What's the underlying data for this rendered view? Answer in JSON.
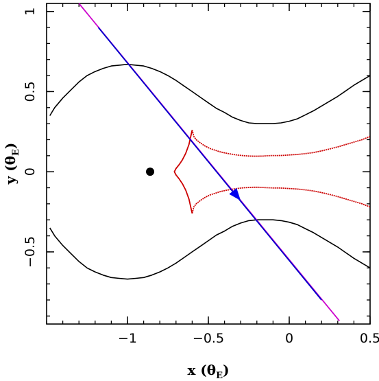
{
  "chart_data": {
    "type": "line",
    "xlim": [
      -1.5,
      0.5
    ],
    "ylim": [
      -0.95,
      1.05
    ],
    "x_ticks": [
      -1,
      -0.5,
      0,
      0.5
    ],
    "x_tick_labels": [
      "−1",
      "−0.5",
      "0",
      "0.5"
    ],
    "y_ticks": [
      -0.5,
      0,
      0.5,
      1
    ],
    "y_tick_labels": [
      "−0.5",
      "0",
      "0.5",
      "1"
    ],
    "x_minor_step": 0.1,
    "y_minor_step": 0.1,
    "xlabel": {
      "main": "x (θ",
      "sub": "E",
      "close": ")"
    },
    "ylabel": {
      "main": "y (θ",
      "sub": "E",
      "close": ")"
    },
    "grid": false,
    "colors": {
      "critical_curve": "#000000",
      "caustic": "#cc0000",
      "trajectory_main": "#0000cc",
      "trajectory_ends": "#cc00cc",
      "arrow": "#0000ee",
      "lens": "#000000"
    },
    "critical_curve_upper": {
      "x": [
        -1.48,
        -1.45,
        -1.4,
        -1.35,
        -1.3,
        -1.25,
        -1.2,
        -1.15,
        -1.1,
        -1.05,
        -1.0,
        -0.95,
        -0.9,
        -0.85,
        -0.8,
        -0.75,
        -0.7,
        -0.65,
        -0.6,
        -0.55,
        -0.5,
        -0.45,
        -0.4,
        -0.35,
        -0.3,
        -0.25,
        -0.2,
        -0.15,
        -0.1,
        -0.05,
        0.0,
        0.05,
        0.1,
        0.15,
        0.2,
        0.25,
        0.3,
        0.35,
        0.4,
        0.45,
        0.5
      ],
      "y": [
        0.35,
        0.4,
        0.46,
        0.51,
        0.56,
        0.6,
        0.625,
        0.645,
        0.66,
        0.665,
        0.67,
        0.665,
        0.66,
        0.645,
        0.625,
        0.6,
        0.57,
        0.535,
        0.5,
        0.465,
        0.43,
        0.395,
        0.37,
        0.34,
        0.32,
        0.305,
        0.3,
        0.3,
        0.3,
        0.305,
        0.315,
        0.33,
        0.355,
        0.38,
        0.41,
        0.44,
        0.47,
        0.505,
        0.54,
        0.57,
        0.6
      ]
    },
    "critical_curve_lower": {
      "x": [
        -1.48,
        -1.45,
        -1.4,
        -1.35,
        -1.3,
        -1.25,
        -1.2,
        -1.15,
        -1.1,
        -1.05,
        -1.0,
        -0.95,
        -0.9,
        -0.85,
        -0.8,
        -0.75,
        -0.7,
        -0.65,
        -0.6,
        -0.55,
        -0.5,
        -0.45,
        -0.4,
        -0.35,
        -0.3,
        -0.25,
        -0.2,
        -0.15,
        -0.1,
        -0.05,
        0.0,
        0.05,
        0.1,
        0.15,
        0.2,
        0.25,
        0.3,
        0.35,
        0.4,
        0.45,
        0.5
      ],
      "y": [
        -0.35,
        -0.4,
        -0.46,
        -0.51,
        -0.56,
        -0.6,
        -0.625,
        -0.645,
        -0.66,
        -0.665,
        -0.67,
        -0.665,
        -0.66,
        -0.645,
        -0.625,
        -0.6,
        -0.57,
        -0.535,
        -0.5,
        -0.465,
        -0.43,
        -0.395,
        -0.37,
        -0.34,
        -0.32,
        -0.305,
        -0.3,
        -0.3,
        -0.3,
        -0.305,
        -0.315,
        -0.33,
        -0.355,
        -0.38,
        -0.41,
        -0.44,
        -0.47,
        -0.505,
        -0.54,
        -0.57,
        -0.6
      ]
    },
    "caustic_cusp_left": {
      "x": [
        -0.6,
        -0.62,
        -0.64,
        -0.66,
        -0.68,
        -0.7,
        -0.71,
        -0.7,
        -0.68,
        -0.66,
        -0.64,
        -0.62,
        -0.6
      ],
      "y": [
        0.26,
        0.17,
        0.115,
        0.075,
        0.045,
        0.02,
        0.0,
        -0.02,
        -0.045,
        -0.075,
        -0.115,
        -0.17,
        -0.26
      ]
    },
    "caustic_cusp_inner": {
      "x": [
        -0.6,
        -0.59,
        -0.575,
        -0.55,
        -0.52,
        -0.49,
        -0.46,
        -0.43,
        -0.4,
        -0.37,
        -0.34,
        -0.31,
        -0.28,
        -0.25,
        -0.22,
        -0.19,
        -0.16,
        -0.13,
        -0.1,
        -0.07,
        -0.04,
        -0.01,
        0.02,
        0.05,
        0.1,
        0.15,
        0.2,
        0.25,
        0.3,
        0.35,
        0.4,
        0.45,
        0.5
      ],
      "y": [
        0.26,
        0.22,
        0.2,
        0.18,
        0.16,
        0.145,
        0.135,
        0.125,
        0.118,
        0.112,
        0.107,
        0.103,
        0.1,
        0.098,
        0.097,
        0.097,
        0.098,
        0.1,
        0.101,
        0.101,
        0.102,
        0.104,
        0.106,
        0.108,
        0.113,
        0.12,
        0.13,
        0.142,
        0.155,
        0.17,
        0.185,
        0.2,
        0.22
      ]
    },
    "caustic_cusp_inner_lower": {
      "x": [
        -0.6,
        -0.59,
        -0.575,
        -0.55,
        -0.52,
        -0.49,
        -0.46,
        -0.43,
        -0.4,
        -0.37,
        -0.34,
        -0.31,
        -0.28,
        -0.25,
        -0.22,
        -0.19,
        -0.16,
        -0.13,
        -0.1,
        -0.07,
        -0.04,
        -0.01,
        0.02,
        0.05,
        0.1,
        0.15,
        0.2,
        0.25,
        0.3,
        0.35,
        0.4,
        0.45,
        0.5
      ],
      "y": [
        -0.26,
        -0.22,
        -0.2,
        -0.18,
        -0.16,
        -0.145,
        -0.135,
        -0.125,
        -0.118,
        -0.112,
        -0.107,
        -0.103,
        -0.1,
        -0.098,
        -0.097,
        -0.097,
        -0.098,
        -0.1,
        -0.101,
        -0.101,
        -0.102,
        -0.104,
        -0.106,
        -0.108,
        -0.113,
        -0.12,
        -0.13,
        -0.142,
        -0.155,
        -0.17,
        -0.185,
        -0.2,
        -0.22
      ]
    },
    "trajectory": {
      "x": [
        -1.3,
        0.31
      ],
      "y": [
        1.05,
        -0.93
      ]
    },
    "trajectory_main_segment": {
      "x": [
        -1.18,
        0.2
      ],
      "y": [
        0.9,
        -0.8
      ]
    },
    "arrow": {
      "x": -0.3,
      "y": -0.18
    },
    "lens": {
      "x": -0.86,
      "y": 0.0
    }
  }
}
